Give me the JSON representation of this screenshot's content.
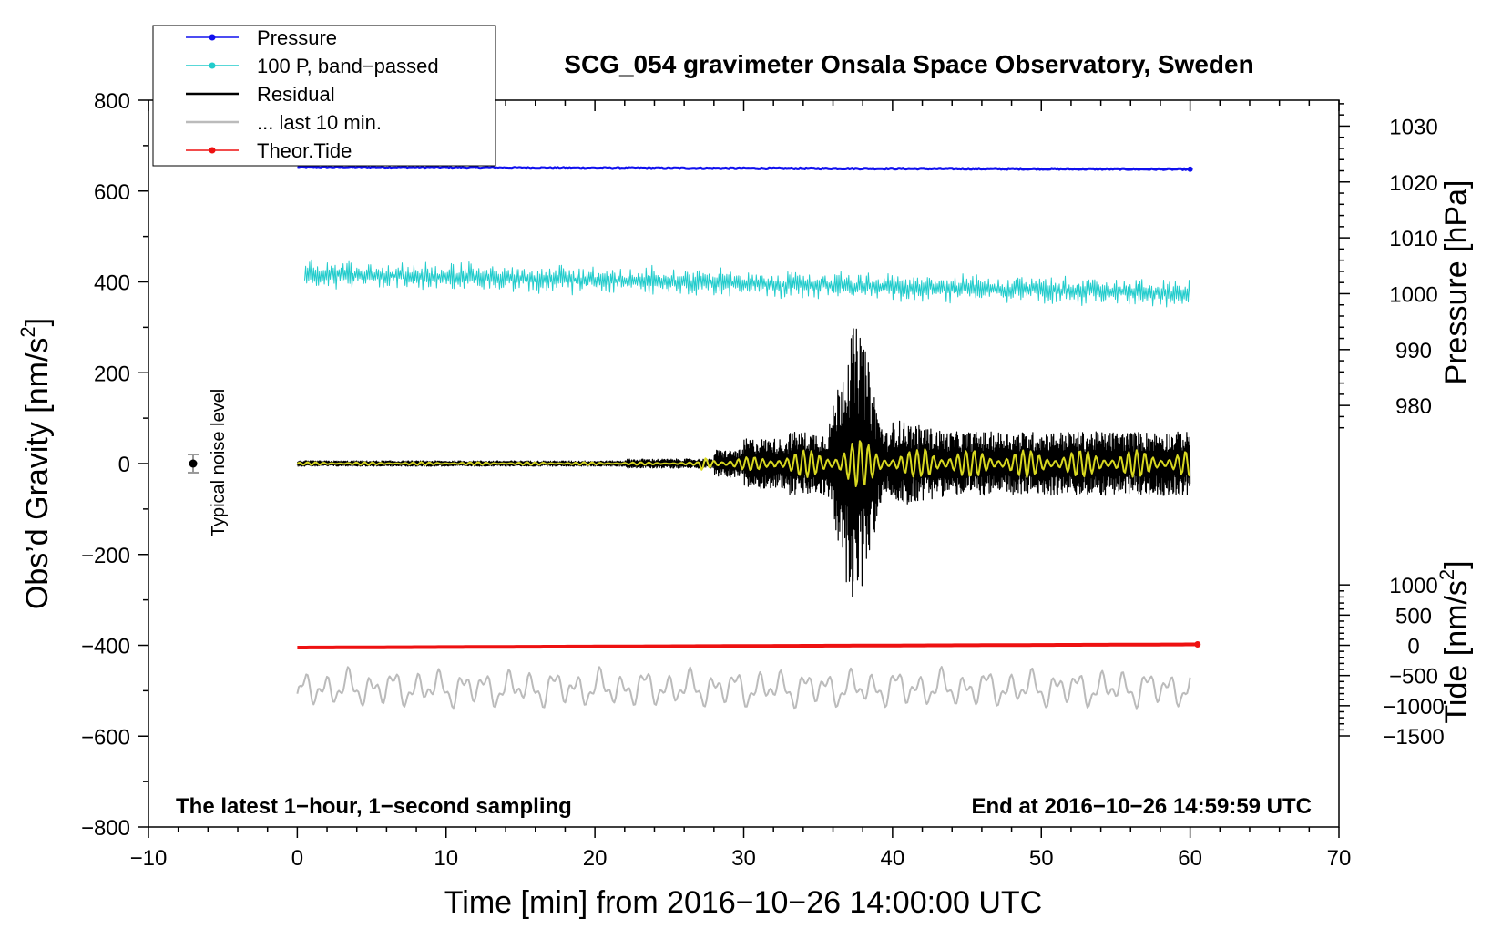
{
  "chart_data": {
    "type": "line",
    "title": "SCG_054 gravimeter Onsala Space Observatory, Sweden",
    "xlabel": "Time [min] from 2016−10−26 14:00:00 UTC",
    "ylabel_main": "Obs’d Gravity [nm/s",
    "ylabel_main_sup": "2",
    "ylabel_main_end": "]",
    "ylabel_pressure": "Pressure [hPa]",
    "ylabel_tide": "Tide [nm/s",
    "ylabel_tide_sup": "2",
    "ylabel_tide_end": "]",
    "xlim": [
      -10,
      70
    ],
    "ylim": [
      -800,
      800
    ],
    "x_ticks": [
      {
        "v": -10,
        "label": "−10"
      },
      {
        "v": 0,
        "label": "0"
      },
      {
        "v": 10,
        "label": "10"
      },
      {
        "v": 20,
        "label": "20"
      },
      {
        "v": 30,
        "label": "30"
      },
      {
        "v": 40,
        "label": "40"
      },
      {
        "v": 50,
        "label": "50"
      },
      {
        "v": 60,
        "label": "60"
      },
      {
        "v": 70,
        "label": "70"
      }
    ],
    "y_ticks": [
      {
        "v": 800,
        "label": "800"
      },
      {
        "v": 600,
        "label": "600"
      },
      {
        "v": 400,
        "label": "400"
      },
      {
        "v": 200,
        "label": "200"
      },
      {
        "v": 0,
        "label": "0"
      },
      {
        "v": -200,
        "label": "−200"
      },
      {
        "v": -400,
        "label": "−400"
      },
      {
        "v": -600,
        "label": "−600"
      },
      {
        "v": -800,
        "label": "−800"
      }
    ],
    "pressure_axis": {
      "ref_hpa": 1020,
      "ref_gravity": 620,
      "gravity_per_hpa": 12.3,
      "ticks": [
        {
          "v": 1030,
          "label": "1030"
        },
        {
          "v": 1020,
          "label": "1020"
        },
        {
          "v": 1010,
          "label": "1010"
        },
        {
          "v": 1000,
          "label": "1000"
        },
        {
          "v": 990,
          "label": "990"
        },
        {
          "v": 980,
          "label": "980"
        }
      ]
    },
    "tide_axis": {
      "ref_tide": 0,
      "ref_gravity": -400,
      "gravity_per_unit": 0.133,
      "ticks": [
        {
          "v": 1000,
          "label": "1000"
        },
        {
          "v": 500,
          "label": "500"
        },
        {
          "v": 0,
          "label": "0"
        },
        {
          "v": -500,
          "label": "−500"
        },
        {
          "v": -1000,
          "label": "−1000"
        },
        {
          "v": -1500,
          "label": "−1500"
        }
      ]
    },
    "legend": {
      "placement": "top-left",
      "entries": [
        {
          "label": "Pressure",
          "color": "#1010ee",
          "marker": true
        },
        {
          "label": "100 P, band−passed",
          "color": "#22cccc",
          "marker": true
        },
        {
          "label": "Residual",
          "color": "#000000",
          "marker": false
        },
        {
          "label": "... last 10 min.",
          "color": "#bbbbbb",
          "marker": false
        },
        {
          "label": "Theor.Tide",
          "color": "#ee1111",
          "marker": true
        }
      ]
    },
    "annotations": {
      "left_note": "The latest 1−hour, 1−second sampling",
      "right_note": "End at 2016−10−26 14:59:59 UTC",
      "noise_label": "Typical noise level",
      "noise_point": {
        "x": -7,
        "y": 0,
        "err": 20
      }
    },
    "series": [
      {
        "name": "Pressure",
        "color": "#1010ee",
        "x_range": [
          0,
          60
        ],
        "y_start": 652,
        "y_end": 648,
        "noise": 1.2
      },
      {
        "name": "100 P, band-passed",
        "color": "#22cccc",
        "x_range": [
          0.5,
          60
        ],
        "y_start": 418,
        "y_end": 375,
        "amp_min": 15,
        "amp_max": 60
      },
      {
        "name": "Residual",
        "color": "#000000",
        "x_range": [
          0,
          60
        ],
        "baseline": 0,
        "quake_center_min": 37.5,
        "peak_max": 350,
        "peak_min": -330
      },
      {
        "name": "Residual (last 10 min, yellow)",
        "color": "#d8d820",
        "x_range": [
          27,
          60
        ]
      },
      {
        "name": "Theor.Tide",
        "color": "#ee1111",
        "x_range": [
          0,
          60.5
        ],
        "y_start": -405,
        "y_end": -398
      },
      {
        "name": "... last 10 min.",
        "color": "#bbbbbb",
        "x_range": [
          0,
          60
        ],
        "baseline": -495,
        "amp": 30
      }
    ]
  }
}
